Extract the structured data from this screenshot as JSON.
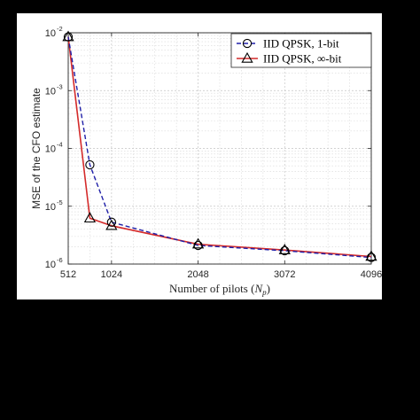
{
  "chart_data": {
    "type": "line",
    "xlabel_prefix": "Number of pilots (",
    "xlabel_var": "N",
    "xlabel_sub": "p",
    "xlabel_suffix": ")",
    "ylabel": "MSE of the CFO estimate",
    "xlim": [
      512,
      4096
    ],
    "ylim": [
      1e-06,
      0.01
    ],
    "yscale": "log",
    "x_ticks": [
      512,
      1024,
      2048,
      3072,
      4096
    ],
    "x_tick_labels": [
      "512",
      "1024",
      "2048",
      "3072",
      "4096"
    ],
    "y_ticks": [
      1e-06,
      1e-05,
      0.0001,
      0.001,
      0.01
    ],
    "y_tick_base": "10",
    "y_tick_exponents": [
      "-6",
      "-5",
      "-4",
      "-3",
      "-2"
    ],
    "grid": true,
    "legend_position": "top-right",
    "series": [
      {
        "name": "IID QPSK, 1-bit",
        "color": "#1f1fa8",
        "line_style": "dashed",
        "marker": "circle",
        "x": [
          512,
          768,
          1024,
          2048,
          3072,
          4096
        ],
        "y": [
          0.0085,
          5.2e-05,
          5.3e-06,
          2.1e-06,
          1.7e-06,
          1.3e-06
        ]
      },
      {
        "name": "IID QPSK, ∞-bit",
        "color": "#d42a2a",
        "line_style": "solid",
        "marker": "triangle",
        "x": [
          512,
          768,
          1024,
          2048,
          3072,
          4096
        ],
        "y": [
          0.0085,
          6.2e-06,
          4.6e-06,
          2.2e-06,
          1.75e-06,
          1.35e-06
        ]
      }
    ]
  }
}
